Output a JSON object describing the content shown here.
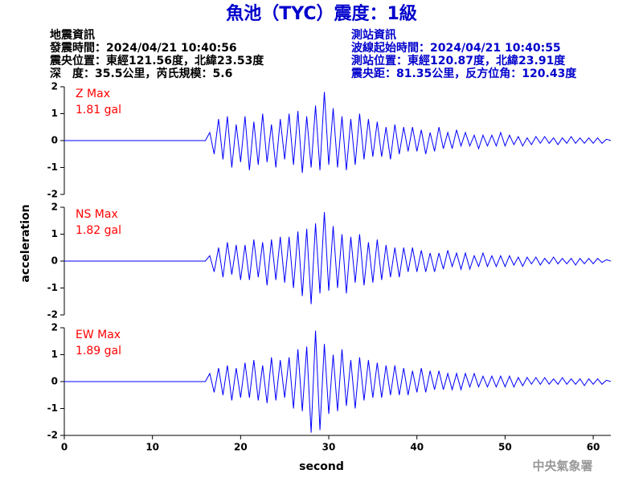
{
  "chart_data": {
    "type": "line",
    "title": "魚池（TYC）震度：1級",
    "info_left": [
      "地震資訊",
      "發震時間：2024/04/21 10:40:56",
      "震央位置：東經121.56度，北緯23.53度",
      "深　度：35.5公里，芮氏規模：5.6"
    ],
    "info_right": [
      "測站資訊",
      "波線起始時間：2024/04/21 10:40:55",
      "測站位置：東經120.87度，北緯23.91度",
      "震央距：81.35公里，反方位角：120.43度"
    ],
    "x_label": "second",
    "y_label": "acceleration",
    "footer": "中央氣象署",
    "xlim": [
      0,
      62
    ],
    "xticks": [
      0,
      10,
      20,
      30,
      40,
      50,
      60
    ],
    "ylim": [
      -2,
      2
    ],
    "yticks": [
      -2,
      -1,
      0,
      1,
      2
    ],
    "x": [
      0,
      0.5,
      1,
      1.5,
      2,
      2.5,
      3,
      3.5,
      4,
      4.5,
      5,
      5.5,
      6,
      6.5,
      7,
      7.5,
      8,
      8.5,
      9,
      9.5,
      10,
      10.5,
      11,
      11.5,
      12,
      12.5,
      13,
      13.5,
      14,
      14.5,
      15,
      15.5,
      16,
      16.5,
      17,
      17.5,
      18,
      18.5,
      19,
      19.5,
      20,
      20.5,
      21,
      21.5,
      22,
      22.5,
      23,
      23.5,
      24,
      24.5,
      25,
      25.5,
      26,
      26.5,
      27,
      27.5,
      28,
      28.5,
      29,
      29.5,
      30,
      30.5,
      31,
      31.5,
      32,
      32.5,
      33,
      33.5,
      34,
      34.5,
      35,
      35.5,
      36,
      36.5,
      37,
      37.5,
      38,
      38.5,
      39,
      39.5,
      40,
      40.5,
      41,
      41.5,
      42,
      42.5,
      43,
      43.5,
      44,
      44.5,
      45,
      45.5,
      46,
      46.5,
      47,
      47.5,
      48,
      48.5,
      49,
      49.5,
      50,
      50.5,
      51,
      51.5,
      52,
      52.5,
      53,
      53.5,
      54,
      54.5,
      55,
      55.5,
      56,
      56.5,
      57,
      57.5,
      58,
      58.5,
      59,
      59.5,
      60,
      60.5,
      61,
      61.5,
      62
    ],
    "series": [
      {
        "name": "Z Max",
        "max_label": "1.81 gal",
        "color": "#0000ff",
        "label_color": "#ff0000",
        "values": [
          0,
          0,
          0,
          0,
          0,
          0,
          0,
          0,
          0,
          0,
          0,
          0,
          0,
          0,
          0,
          0,
          0,
          0,
          0,
          0,
          0,
          0,
          0,
          0,
          0,
          0,
          0,
          0,
          0,
          0,
          0,
          0,
          0,
          0.3,
          -0.5,
          0.8,
          -0.7,
          0.9,
          -1.0,
          0.6,
          -0.8,
          0.9,
          -1.1,
          0.7,
          -0.9,
          1.0,
          -0.8,
          0.6,
          -1.0,
          0.8,
          -0.7,
          1.0,
          -0.9,
          1.1,
          -1.2,
          0.9,
          -1.0,
          1.3,
          -1.1,
          1.81,
          -0.9,
          1.2,
          -1.0,
          0.9,
          -1.1,
          0.8,
          -0.9,
          1.0,
          -0.7,
          0.8,
          -0.6,
          0.7,
          -0.6,
          0.5,
          -0.7,
          0.6,
          -0.5,
          0.5,
          -0.4,
          0.5,
          -0.4,
          0.4,
          -0.5,
          0.3,
          -0.4,
          0.5,
          -0.3,
          0.3,
          -0.3,
          0.4,
          -0.2,
          0.3,
          -0.2,
          0.2,
          -0.3,
          0.2,
          -0.2,
          0.2,
          -0.2,
          0.3,
          -0.2,
          0.2,
          -0.15,
          0.15,
          -0.2,
          0.1,
          -0.15,
          0.15,
          -0.1,
          0.15,
          -0.1,
          0.1,
          -0.15,
          0.1,
          -0.1,
          0.15,
          -0.1,
          0.1,
          -0.1,
          0.1,
          -0.1,
          0.1,
          -0.1,
          0.05,
          0
        ]
      },
      {
        "name": "NS Max",
        "max_label": "1.82 gal",
        "color": "#0000ff",
        "label_color": "#ff0000",
        "values": [
          0,
          0,
          0,
          0,
          0,
          0,
          0,
          0,
          0,
          0,
          0,
          0,
          0,
          0,
          0,
          0,
          0,
          0,
          0,
          0,
          0,
          0,
          0,
          0,
          0,
          0,
          0,
          0,
          0,
          0,
          0,
          0,
          0,
          0.2,
          -0.4,
          0.5,
          -0.6,
          0.7,
          -0.5,
          0.6,
          -0.7,
          0.6,
          -0.7,
          0.8,
          -0.6,
          0.7,
          -0.9,
          0.8,
          -0.7,
          0.9,
          -0.8,
          0.9,
          -1.0,
          1.1,
          -1.3,
          1.2,
          -1.6,
          1.4,
          -1.2,
          1.82,
          -1.1,
          1.3,
          -1.0,
          1.0,
          -1.2,
          0.9,
          -0.8,
          1.0,
          -0.9,
          0.7,
          -0.8,
          0.8,
          -0.7,
          0.6,
          -0.6,
          0.5,
          -0.6,
          0.5,
          -0.4,
          0.5,
          -0.4,
          0.4,
          -0.4,
          0.3,
          -0.4,
          0.3,
          -0.3,
          0.4,
          -0.2,
          0.3,
          -0.3,
          0.3,
          -0.3,
          0.2,
          -0.2,
          0.3,
          -0.2,
          0.2,
          -0.2,
          0.2,
          -0.2,
          0.2,
          -0.15,
          0.15,
          -0.2,
          0.15,
          -0.1,
          0.15,
          -0.15,
          0.1,
          -0.1,
          0.15,
          -0.1,
          0.1,
          -0.1,
          0.1,
          -0.15,
          0.1,
          -0.1,
          0.1,
          -0.1,
          0.1,
          -0.05,
          0.05,
          0
        ]
      },
      {
        "name": "EW Max",
        "max_label": "1.89 gal",
        "color": "#0000ff",
        "label_color": "#ff0000",
        "values": [
          0,
          0,
          0,
          0,
          0,
          0,
          0,
          0,
          0,
          0,
          0,
          0,
          0,
          0,
          0,
          0,
          0,
          0,
          0,
          0,
          0,
          0,
          0,
          0,
          0,
          0,
          0,
          0,
          0,
          0,
          0,
          0,
          0,
          0.3,
          -0.4,
          0.5,
          -0.5,
          0.6,
          -0.7,
          0.5,
          -0.6,
          0.7,
          -0.6,
          0.8,
          -0.7,
          0.6,
          -0.8,
          0.9,
          -0.7,
          0.8,
          -0.6,
          0.9,
          -1.0,
          1.2,
          -1.1,
          1.3,
          -1.9,
          1.89,
          -1.8,
          1.4,
          -1.2,
          1.0,
          -1.1,
          1.2,
          -0.9,
          0.8,
          -1.0,
          0.9,
          -0.7,
          0.8,
          -0.6,
          0.7,
          -0.6,
          0.6,
          -0.5,
          0.6,
          -0.5,
          0.5,
          -0.5,
          0.4,
          -0.4,
          0.5,
          -0.4,
          0.4,
          -0.3,
          0.4,
          -0.3,
          0.3,
          -0.3,
          0.3,
          -0.3,
          0.3,
          -0.2,
          0.3,
          -0.2,
          0.2,
          -0.2,
          0.2,
          -0.2,
          0.2,
          -0.2,
          0.2,
          -0.2,
          0.15,
          -0.15,
          0.15,
          -0.1,
          0.15,
          -0.1,
          0.15,
          -0.1,
          0.1,
          -0.1,
          0.15,
          -0.1,
          0.1,
          -0.1,
          0.1,
          -0.15,
          0.1,
          -0.1,
          0.1,
          -0.1,
          0.05,
          0
        ]
      }
    ]
  }
}
